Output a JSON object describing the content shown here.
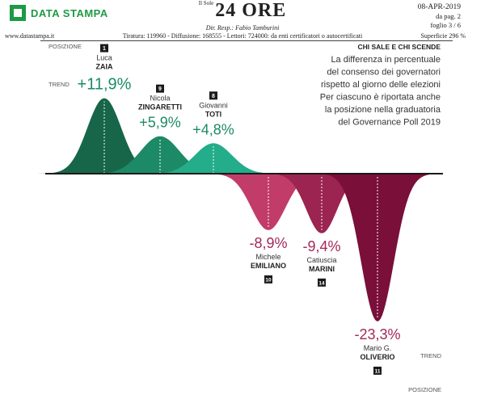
{
  "header": {
    "brand": "DATA STAMPA",
    "masthead_small": "Il Sole",
    "masthead": "24 ORE",
    "director": "Dir. Resp.: Fabio Tamburini",
    "date": "08-APR-2019",
    "page": "da pag.  2",
    "sheet": "foglio 3 / 6",
    "url": "www.datastampa.it",
    "circulation": "Tiratura: 119960 - Diffusione: 168555 - Lettori: 724000: da enti certificatori o autocertificati",
    "surface": "Superficie 296 %"
  },
  "chart_data": {
    "type": "area",
    "title": "CHI SALE E CHI SCENDE",
    "subtitle_lines": [
      "La differenza in percentuale",
      "del consenso dei governatori",
      "rispetto al giorno delle elezioni",
      "Per ciascuno è riportata anche",
      "la posizione nella graduatoria",
      "del Governance Poll 2019"
    ],
    "axis_labels": {
      "position": "POSIZIONE",
      "trend": "TREND"
    },
    "series": [
      {
        "first": "Luca",
        "last": "ZAIA",
        "value": 11.9,
        "label": "+11,9%",
        "position": "1",
        "color": "#17664a"
      },
      {
        "first": "Nicola",
        "last": "ZINGARETTI",
        "value": 5.9,
        "label": "+5,9%",
        "position": "9",
        "color": "#1c8a66"
      },
      {
        "first": "Giovanni",
        "last": "TOTI",
        "value": 4.8,
        "label": "+4,8%",
        "position": "8",
        "color": "#23ad8a"
      },
      {
        "first": "Michele",
        "last": "EMILIANO",
        "value": -8.9,
        "label": "-8,9%",
        "position": "10",
        "color": "#c23c69"
      },
      {
        "first": "Catiuscia",
        "last": "MARINI",
        "value": -9.4,
        "label": "-9,4%",
        "position": "14",
        "color": "#9b2450"
      },
      {
        "first": "Mario G.",
        "last": "OLIVERIO",
        "value": -23.3,
        "label": "-23,3%",
        "position": "11",
        "color": "#7a0f3a"
      }
    ],
    "colors": {
      "positive_text": "#1c8a66",
      "negative_text": "#a3285a"
    }
  }
}
